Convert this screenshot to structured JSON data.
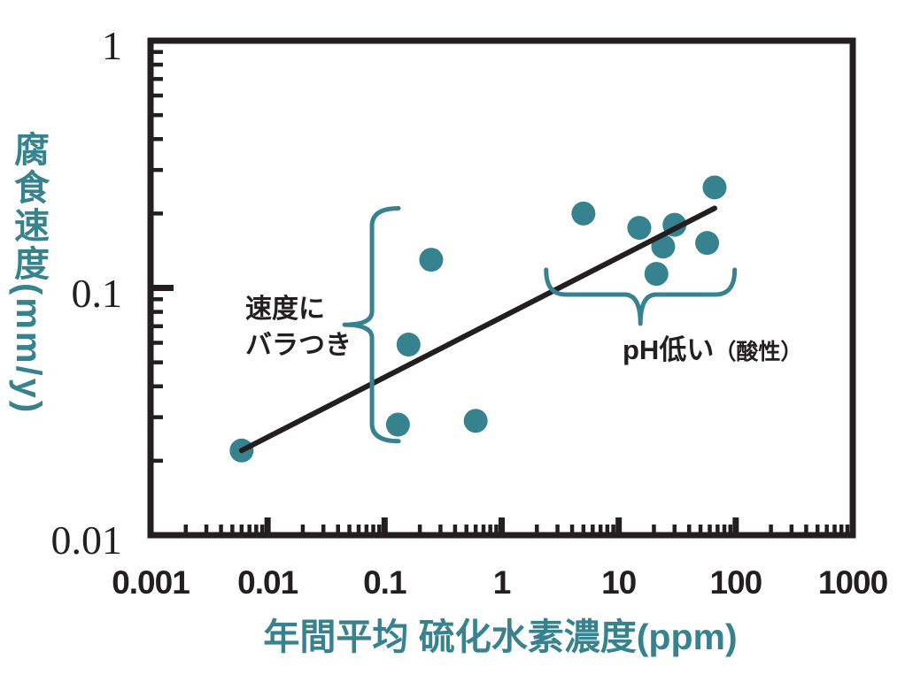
{
  "colors": {
    "accent_teal": "#37828F",
    "ink_black": "#231F20",
    "background": "#ffffff"
  },
  "chart_data": {
    "type": "scatter",
    "title": "",
    "xlabel": "年間平均 硫化水素濃度(ppm)",
    "ylabel": "腐食速度(mm/y)",
    "x_scale": "log",
    "y_scale": "log",
    "xlim": [
      0.001,
      1000
    ],
    "ylim": [
      0.01,
      1
    ],
    "x_tick_labels": [
      "0.001",
      "0.01",
      "0.1",
      "1",
      "10",
      "100",
      "1000"
    ],
    "y_tick_labels": [
      "1",
      "0.1",
      "0.01"
    ],
    "grid": "off",
    "legend": "none",
    "point_color": "#37828F",
    "trend_line_color": "#231F20",
    "series": [
      {
        "name": "corrosion-rate-points",
        "points": [
          {
            "x": 0.006,
            "y": 0.022
          },
          {
            "x": 0.13,
            "y": 0.028
          },
          {
            "x": 0.16,
            "y": 0.059
          },
          {
            "x": 0.25,
            "y": 0.13
          },
          {
            "x": 0.6,
            "y": 0.029
          },
          {
            "x": 5,
            "y": 0.2
          },
          {
            "x": 15,
            "y": 0.175
          },
          {
            "x": 30,
            "y": 0.18
          },
          {
            "x": 24,
            "y": 0.147
          },
          {
            "x": 21,
            "y": 0.114
          },
          {
            "x": 57,
            "y": 0.152
          },
          {
            "x": 66,
            "y": 0.255
          }
        ]
      }
    ],
    "trend_line": {
      "x1": 0.006,
      "y1": 0.022,
      "x2": 66,
      "y2": 0.21
    },
    "annotations": [
      {
        "id": "speed-variance",
        "line1": "速度に",
        "line2": "バラつき"
      },
      {
        "id": "low-ph",
        "text": "pH低い",
        "suffix": "（酸性）"
      }
    ],
    "braces": [
      {
        "id": "speed-variance-brace",
        "orientation": "vertical",
        "at_x": 0.078,
        "from_y": 0.21,
        "to_y": 0.024
      },
      {
        "id": "low-ph-brace",
        "orientation": "horizontal",
        "at_y": 0.094,
        "from_x": 2.4,
        "to_x": 98
      }
    ]
  }
}
